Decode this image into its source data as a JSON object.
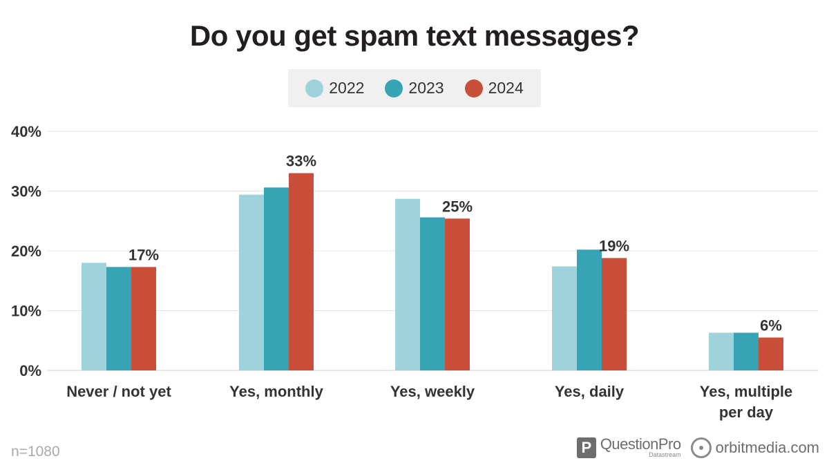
{
  "chart_data": {
    "type": "bar",
    "title": "Do you get spam text messages?",
    "categories": [
      "Never / not yet",
      "Yes, monthly",
      "Yes, weekly",
      "Yes, daily",
      "Yes, multiple per day"
    ],
    "series": [
      {
        "name": "2022",
        "color": "#9fd3db",
        "values": [
          18,
          29.4,
          28.7,
          17.4,
          6.3
        ]
      },
      {
        "name": "2023",
        "color": "#36a4b4",
        "values": [
          17.3,
          30.6,
          25.6,
          20.2,
          6.3
        ]
      },
      {
        "name": "2024",
        "color": "#c94f3a",
        "values": [
          17.3,
          33,
          25.4,
          18.8,
          5.5
        ]
      }
    ],
    "data_labels": [
      "17%",
      "33%",
      "25%",
      "19%",
      "6%"
    ],
    "ylim": [
      0,
      40
    ],
    "yticks": [
      "0%",
      "10%",
      "20%",
      "30%",
      "40%"
    ],
    "ytick_values": [
      0,
      10,
      20,
      30,
      40
    ],
    "grid": true,
    "legend_position": "top-center"
  },
  "legend": [
    {
      "label": "2022",
      "color": "#9fd3db"
    },
    {
      "label": "2023",
      "color": "#36a4b4"
    },
    {
      "label": "2024",
      "color": "#c94f3a"
    }
  ],
  "footer": {
    "sample_size": "n=1080",
    "questionpro_name": "QuestionPro",
    "questionpro_sub": "Datastream",
    "orbit_name": "orbitmedia.com"
  }
}
